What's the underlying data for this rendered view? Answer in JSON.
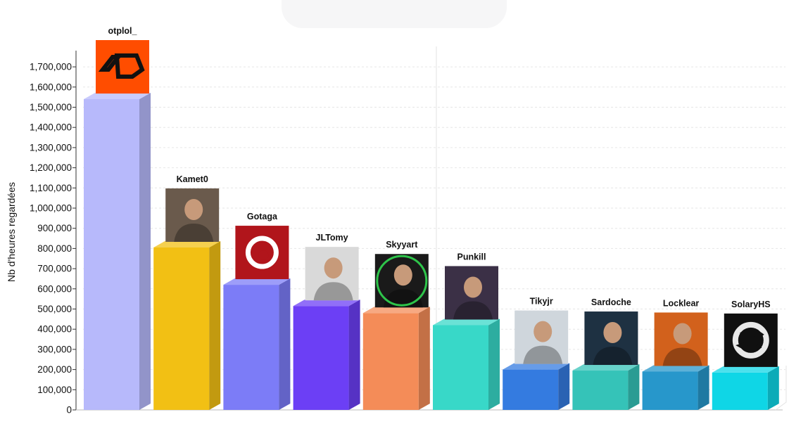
{
  "chart_data": {
    "type": "bar",
    "ylabel": "Nb d'heures regardées",
    "ylim": [
      0,
      1800000
    ],
    "yticks": [
      0,
      100000,
      200000,
      300000,
      400000,
      500000,
      600000,
      700000,
      800000,
      900000,
      1000000,
      1100000,
      1200000,
      1300000,
      1400000,
      1500000,
      1600000,
      1700000
    ],
    "ytick_labels": [
      "0",
      "100,000",
      "200,000",
      "300,000",
      "400,000",
      "500,000",
      "600,000",
      "700,000",
      "800,000",
      "900,000",
      "1,000,000",
      "1,100,000",
      "1,200,000",
      "1,300,000",
      "1,400,000",
      "1,500,000",
      "1,600,000",
      "1,700,000"
    ],
    "grid": true,
    "style": "3d-bars",
    "categories": [
      "otplol_",
      "Kamet0",
      "Gotaga",
      "JLTomy",
      "Skyyart",
      "Punkill",
      "Tikyjr",
      "Sardoche",
      "Locklear",
      "SolaryHS"
    ],
    "values": [
      1540000,
      805000,
      620000,
      515000,
      480000,
      420000,
      200000,
      195000,
      190000,
      185000
    ],
    "colors": [
      "#b7b9fb",
      "#f2c014",
      "#7c7cf7",
      "#6c3ff5",
      "#f48c58",
      "#38d8c8",
      "#347be0",
      "#35c3b8",
      "#2797cb",
      "#0fd6e6"
    ],
    "avatar_icons": [
      "otp-logo-icon",
      "kamet0-avatar",
      "gotaga-logo-icon",
      "jltomy-avatar",
      "skyyart-avatar",
      "punkill-avatar",
      "tikyjr-avatar",
      "sardoche-avatar",
      "locklear-avatar",
      "solaryhs-logo-icon"
    ]
  }
}
